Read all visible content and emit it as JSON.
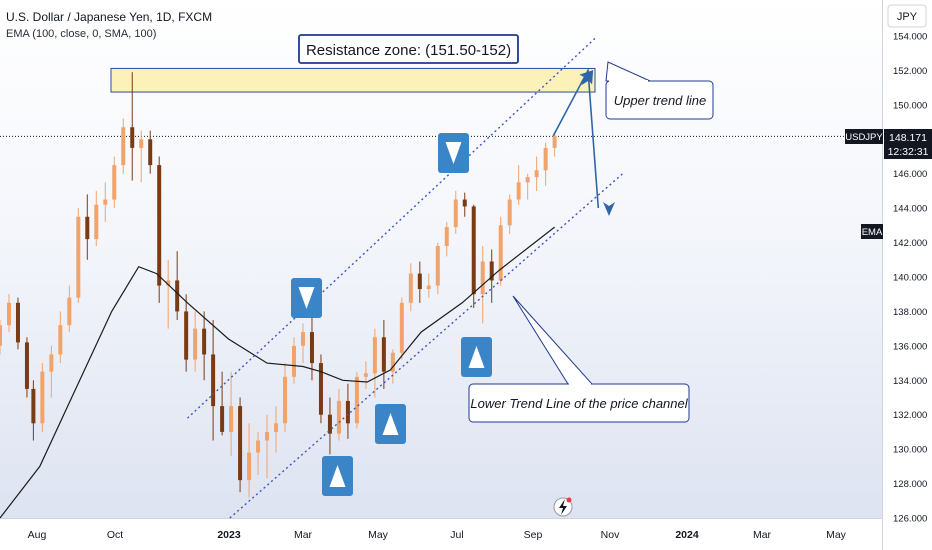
{
  "header": {
    "symbol_line": "U.S. Dollar / Japanese Yen, 1D, FXCM",
    "indicator_line": "EMA (100, close, 0, SMA, 100)"
  },
  "price_axis": {
    "currency_button": "JPY",
    "tick_labels": [
      "154.000",
      "152.000",
      "150.000",
      "148.000",
      "146.000",
      "144.000",
      "142.000",
      "140.000",
      "138.000",
      "136.000",
      "134.000",
      "132.000",
      "130.000",
      "128.000",
      "126.000"
    ],
    "current_tag": {
      "symbol": "USDJPY",
      "price": "148.171",
      "countdown": "12:32:31"
    },
    "ema_tag": "EMA"
  },
  "time_axis": {
    "labels": [
      "Aug",
      "Oct",
      "2023",
      "Mar",
      "May",
      "Jul",
      "Sep",
      "Nov",
      "2024",
      "Mar",
      "May"
    ]
  },
  "annotations": {
    "resistance": "Resistance zone: (151.50-152)",
    "upper_trend": "Upper trend line",
    "lower_trend": "Lower Trend Line of the price channel"
  },
  "colors": {
    "bg_gradient_bottom": "#dde3f1",
    "candle_up": "#f0a46c",
    "candle_down": "#7a3b14",
    "ema_line": "#1c1c1c",
    "trend_line": "#3d55c4",
    "resistance_fill": "#fcf1b8",
    "resistance_border": "#2b4aa0",
    "marker_bg": "#3a84c8",
    "arrow": "#2f66a8"
  },
  "chart_data": {
    "type": "candlestick",
    "y_range": [
      126,
      154
    ],
    "x_range": [
      "2022-07-08",
      "2024-05-25"
    ],
    "current_price": 148.171,
    "resistance_zone": [
      151.5,
      152
    ],
    "upper_channel_line": {
      "from": [
        "2022-12-01",
        131.8
      ],
      "to": [
        "2023-10-15",
        153.9
      ]
    },
    "lower_channel_line": {
      "from": [
        "2023-01-03",
        126.0
      ],
      "to": [
        "2023-11-05",
        146.0
      ]
    },
    "projected_path": [
      [
        "2023-09-12",
        148.2
      ],
      [
        "2023-10-09",
        152.0
      ],
      [
        "2023-10-17",
        144.0
      ]
    ],
    "ema": [
      [
        "2022-07-08",
        126.0
      ],
      [
        "2022-08-08",
        129.0
      ],
      [
        "2022-09-05",
        133.5
      ],
      [
        "2022-10-03",
        138.0
      ],
      [
        "2022-10-24",
        140.6
      ],
      [
        "2022-11-07",
        140.2
      ],
      [
        "2022-12-01",
        138.5
      ],
      [
        "2023-01-02",
        136.4
      ],
      [
        "2023-02-01",
        135.0
      ],
      [
        "2023-03-01",
        134.8
      ],
      [
        "2023-03-15",
        134.5
      ],
      [
        "2023-04-01",
        134.0
      ],
      [
        "2023-04-20",
        133.9
      ],
      [
        "2023-05-08",
        134.6
      ],
      [
        "2023-06-01",
        136.8
      ],
      [
        "2023-07-03",
        138.5
      ],
      [
        "2023-08-01",
        140.4
      ],
      [
        "2023-09-13",
        142.9
      ]
    ],
    "candles": [
      [
        "2022-07-08",
        136.0,
        137.5,
        135.5,
        137.2
      ],
      [
        "2022-07-15",
        137.2,
        139.0,
        136.8,
        138.5
      ],
      [
        "2022-07-22",
        138.5,
        138.8,
        135.8,
        136.2
      ],
      [
        "2022-07-29",
        136.2,
        136.5,
        133.0,
        133.5
      ],
      [
        "2022-08-03",
        133.5,
        134.0,
        130.5,
        131.5
      ],
      [
        "2022-08-10",
        131.5,
        135.0,
        131.0,
        134.5
      ],
      [
        "2022-08-17",
        134.5,
        136.0,
        133.0,
        135.5
      ],
      [
        "2022-08-24",
        135.5,
        138.0,
        135.0,
        137.2
      ],
      [
        "2022-08-31",
        137.2,
        139.5,
        136.8,
        138.8
      ],
      [
        "2022-09-07",
        138.8,
        144.0,
        138.5,
        143.5
      ],
      [
        "2022-09-14",
        143.5,
        144.8,
        141.0,
        142.2
      ],
      [
        "2022-09-21",
        142.2,
        145.0,
        141.8,
        144.2
      ],
      [
        "2022-09-28",
        144.2,
        145.5,
        143.2,
        144.5
      ],
      [
        "2022-10-05",
        144.5,
        147.0,
        144.0,
        146.5
      ],
      [
        "2022-10-12",
        146.5,
        149.2,
        146.0,
        148.7
      ],
      [
        "2022-10-19",
        148.7,
        151.9,
        145.6,
        147.5
      ],
      [
        "2022-10-26",
        147.5,
        148.5,
        145.5,
        148.0
      ],
      [
        "2022-11-02",
        148.0,
        148.5,
        146.0,
        146.5
      ],
      [
        "2022-11-09",
        146.5,
        147.0,
        138.5,
        139.5
      ],
      [
        "2022-11-16",
        139.5,
        141.0,
        137.0,
        139.8
      ],
      [
        "2022-11-23",
        139.8,
        141.5,
        137.5,
        138.0
      ],
      [
        "2022-11-30",
        138.0,
        139.0,
        134.5,
        135.2
      ],
      [
        "2022-12-07",
        135.2,
        138.0,
        134.5,
        137.0
      ],
      [
        "2022-12-14",
        137.0,
        138.0,
        134.0,
        135.5
      ],
      [
        "2022-12-21",
        135.5,
        137.5,
        130.5,
        132.5
      ],
      [
        "2022-12-28",
        132.5,
        134.5,
        130.8,
        131.0
      ],
      [
        "2023-01-04",
        131.0,
        134.5,
        129.6,
        132.5
      ],
      [
        "2023-01-11",
        132.5,
        133.0,
        127.5,
        128.2
      ],
      [
        "2023-01-18",
        128.2,
        131.5,
        127.2,
        129.8
      ],
      [
        "2023-01-25",
        129.8,
        131.0,
        128.5,
        130.5
      ],
      [
        "2023-02-01",
        130.5,
        132.0,
        128.3,
        131.0
      ],
      [
        "2023-02-08",
        131.0,
        132.5,
        129.8,
        131.5
      ],
      [
        "2023-02-15",
        131.5,
        135.0,
        131.0,
        134.2
      ],
      [
        "2023-02-22",
        134.2,
        136.5,
        133.8,
        136.0
      ],
      [
        "2023-03-01",
        136.0,
        137.3,
        135.0,
        136.8
      ],
      [
        "2023-03-08",
        136.8,
        137.9,
        134.0,
        135.0
      ],
      [
        "2023-03-15",
        135.0,
        135.5,
        131.5,
        132.0
      ],
      [
        "2023-03-22",
        132.0,
        133.0,
        129.7,
        130.9
      ],
      [
        "2023-03-29",
        130.9,
        133.5,
        130.5,
        132.8
      ],
      [
        "2023-04-05",
        132.8,
        133.8,
        130.6,
        131.5
      ],
      [
        "2023-04-12",
        131.5,
        134.5,
        131.2,
        134.2
      ],
      [
        "2023-04-19",
        134.2,
        135.1,
        133.5,
        134.4
      ],
      [
        "2023-04-26",
        134.4,
        137.0,
        133.0,
        136.5
      ],
      [
        "2023-05-03",
        136.5,
        137.5,
        133.5,
        134.5
      ],
      [
        "2023-05-10",
        134.5,
        135.8,
        133.8,
        135.6
      ],
      [
        "2023-05-17",
        135.6,
        138.8,
        135.2,
        138.5
      ],
      [
        "2023-05-24",
        138.5,
        140.8,
        138.0,
        140.2
      ],
      [
        "2023-05-31",
        140.2,
        140.9,
        138.5,
        139.3
      ],
      [
        "2023-06-07",
        139.3,
        140.2,
        138.8,
        139.5
      ],
      [
        "2023-06-14",
        139.5,
        142.0,
        139.0,
        141.8
      ],
      [
        "2023-06-21",
        141.8,
        143.2,
        141.2,
        142.9
      ],
      [
        "2023-06-28",
        142.9,
        145.0,
        142.5,
        144.5
      ],
      [
        "2023-07-05",
        144.5,
        144.9,
        143.5,
        144.1
      ],
      [
        "2023-07-12",
        144.1,
        144.2,
        138.2,
        139.0
      ],
      [
        "2023-07-19",
        139.0,
        141.8,
        137.3,
        140.9
      ],
      [
        "2023-07-26",
        140.9,
        141.6,
        138.5,
        139.8
      ],
      [
        "2023-08-02",
        139.8,
        143.5,
        139.5,
        143.0
      ],
      [
        "2023-08-09",
        143.0,
        144.8,
        142.5,
        144.5
      ],
      [
        "2023-08-16",
        144.5,
        146.5,
        144.2,
        145.5
      ],
      [
        "2023-08-23",
        145.5,
        146.0,
        144.5,
        145.8
      ],
      [
        "2023-08-30",
        145.8,
        147.0,
        145.0,
        146.2
      ],
      [
        "2023-09-06",
        146.2,
        147.8,
        145.3,
        147.5
      ],
      [
        "2023-09-13",
        147.5,
        148.3,
        147.0,
        148.2
      ]
    ]
  }
}
